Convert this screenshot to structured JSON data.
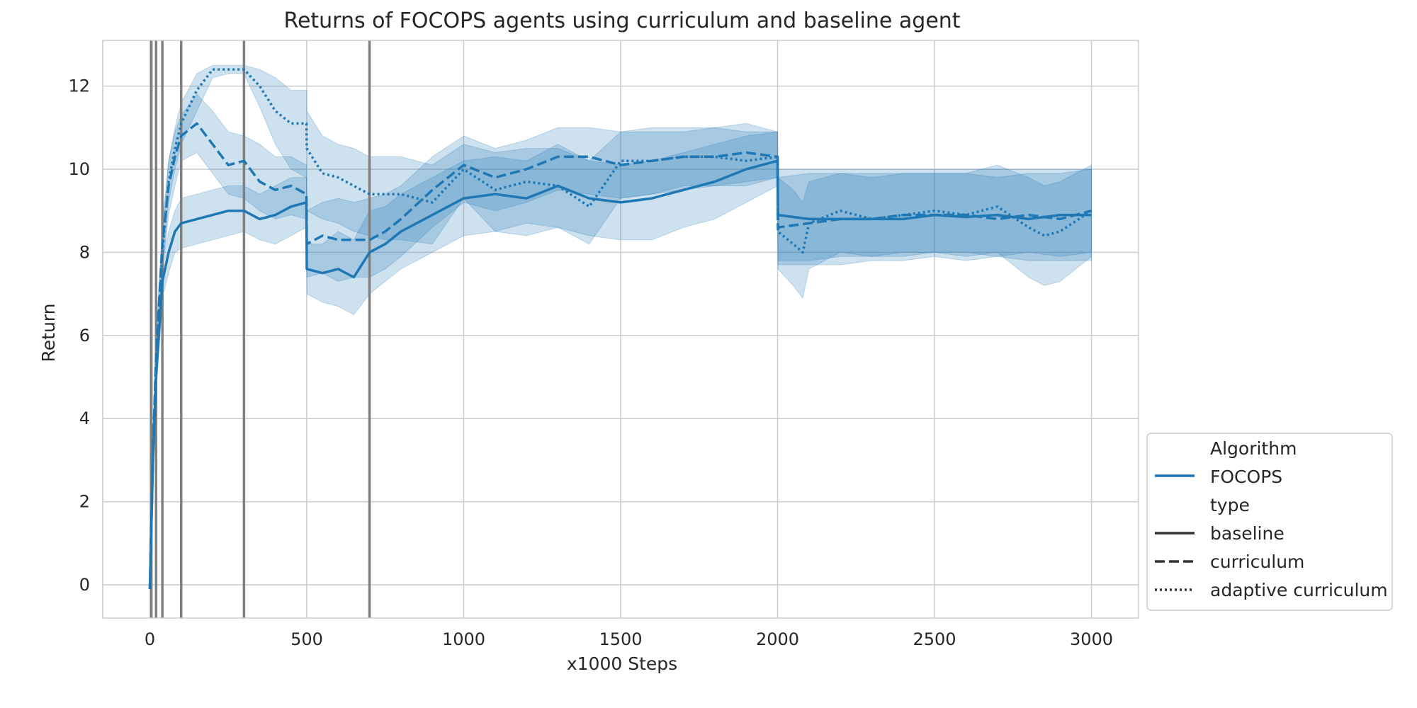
{
  "chart_data": {
    "type": "line",
    "title": "Returns of FOCOPS agents using curriculum and baseline agent",
    "xlabel": "x1000 Steps",
    "ylabel": "Return",
    "xlim": [
      -150,
      3150
    ],
    "ylim": [
      -0.8,
      13.1
    ],
    "xticks": [
      0,
      500,
      1000,
      1500,
      2000,
      2500,
      3000
    ],
    "yticks": [
      0,
      2,
      4,
      6,
      8,
      10,
      12
    ],
    "grid": true,
    "legend_position": "lower-right-outside",
    "color": "#1f77b4",
    "band_color": "#1f77b4",
    "vline_color": "#808080",
    "vlines": [
      5,
      20,
      40,
      100,
      300,
      700
    ],
    "legend": {
      "algorithm_title": "Algorithm",
      "algorithm_entries": [
        "FOCOPS"
      ],
      "type_title": "type",
      "type_entries": [
        "baseline",
        "curriculum",
        "adaptive curriculum"
      ]
    },
    "series": [
      {
        "name": "baseline",
        "style": "solid",
        "x": [
          0,
          10,
          20,
          40,
          60,
          80,
          100,
          150,
          200,
          250,
          300,
          350,
          400,
          450,
          499,
          500,
          550,
          600,
          650,
          700,
          750,
          800,
          900,
          1000,
          1100,
          1200,
          1300,
          1400,
          1500,
          1600,
          1700,
          1800,
          1900,
          2000,
          2001,
          2100,
          2200,
          2300,
          2400,
          2500,
          2600,
          2700,
          2800,
          2900,
          3000
        ],
        "y": [
          -0.1,
          3.0,
          5.0,
          7.3,
          8.0,
          8.5,
          8.7,
          8.8,
          8.9,
          9.0,
          9.0,
          8.8,
          8.9,
          9.1,
          9.2,
          7.6,
          7.5,
          7.6,
          7.4,
          8.0,
          8.2,
          8.5,
          8.9,
          9.3,
          9.4,
          9.3,
          9.6,
          9.3,
          9.2,
          9.3,
          9.5,
          9.7,
          10.0,
          10.2,
          8.9,
          8.8,
          8.8,
          8.8,
          8.8,
          8.9,
          8.85,
          8.9,
          8.8,
          8.9,
          8.9
        ],
        "lower": [
          -0.1,
          2.6,
          4.6,
          6.9,
          7.5,
          8.0,
          8.1,
          8.2,
          8.3,
          8.4,
          8.5,
          8.3,
          8.2,
          8.4,
          8.6,
          7.0,
          6.8,
          6.7,
          6.5,
          7.0,
          7.3,
          7.6,
          8.0,
          8.4,
          8.5,
          8.4,
          8.6,
          8.4,
          8.3,
          8.3,
          8.6,
          8.8,
          9.2,
          9.6,
          7.7,
          7.7,
          7.7,
          7.8,
          7.8,
          7.9,
          7.8,
          7.9,
          7.8,
          7.8,
          7.8
        ],
        "upper": [
          -0.1,
          3.3,
          5.4,
          7.8,
          8.5,
          9.0,
          9.3,
          9.4,
          9.5,
          9.6,
          9.6,
          9.4,
          9.6,
          9.8,
          9.8,
          8.2,
          8.2,
          8.5,
          8.3,
          9.0,
          9.1,
          9.4,
          9.8,
          10.2,
          10.3,
          10.2,
          10.6,
          10.2,
          10.1,
          10.2,
          10.4,
          10.6,
          10.8,
          10.9,
          10.0,
          10.0,
          10.0,
          10.0,
          10.0,
          10.0,
          10.0,
          10.0,
          10.0,
          10.0,
          10.0
        ]
      },
      {
        "name": "curriculum",
        "style": "dashed",
        "x": [
          0,
          10,
          20,
          40,
          60,
          80,
          100,
          150,
          200,
          250,
          300,
          350,
          400,
          450,
          499,
          500,
          550,
          600,
          650,
          700,
          750,
          800,
          900,
          1000,
          1100,
          1200,
          1300,
          1400,
          1500,
          1600,
          1700,
          1800,
          1900,
          2000,
          2001,
          2100,
          2200,
          2300,
          2400,
          2500,
          2600,
          2700,
          2800,
          2900,
          3000
        ],
        "y": [
          -0.1,
          3.2,
          5.5,
          8.2,
          9.6,
          10.3,
          10.8,
          11.1,
          10.6,
          10.1,
          10.2,
          9.7,
          9.5,
          9.6,
          9.4,
          8.2,
          8.4,
          8.3,
          8.3,
          8.3,
          8.5,
          8.8,
          9.5,
          10.1,
          9.8,
          10.0,
          10.3,
          10.3,
          10.1,
          10.2,
          10.3,
          10.3,
          10.4,
          10.3,
          8.6,
          8.7,
          8.8,
          8.8,
          8.9,
          8.9,
          8.9,
          8.8,
          8.9,
          8.8,
          9.0
        ],
        "lower": [
          -0.1,
          2.8,
          5.0,
          7.6,
          8.9,
          9.6,
          10.2,
          10.4,
          9.9,
          9.4,
          9.3,
          9.0,
          8.8,
          8.9,
          8.8,
          7.4,
          7.5,
          7.3,
          7.4,
          7.4,
          7.6,
          7.9,
          8.6,
          9.2,
          9.0,
          9.2,
          9.5,
          9.4,
          9.3,
          9.4,
          9.6,
          9.6,
          9.7,
          9.8,
          7.8,
          7.8,
          7.9,
          7.9,
          8.0,
          8.0,
          8.0,
          7.9,
          8.0,
          7.9,
          8.0
        ],
        "upper": [
          -0.1,
          3.6,
          6.0,
          8.7,
          10.2,
          10.9,
          11.3,
          11.8,
          11.4,
          10.9,
          10.8,
          10.6,
          10.3,
          10.3,
          10.1,
          9.0,
          9.2,
          9.3,
          9.2,
          9.3,
          9.4,
          9.6,
          10.3,
          10.8,
          10.5,
          10.7,
          11.0,
          11.0,
          10.9,
          11.0,
          11.0,
          11.0,
          11.1,
          10.9,
          9.8,
          9.9,
          9.9,
          9.9,
          9.9,
          9.9,
          9.9,
          9.8,
          9.9,
          9.9,
          10.0
        ]
      },
      {
        "name": "adaptive curriculum",
        "style": "dotted",
        "x": [
          0,
          10,
          20,
          40,
          60,
          80,
          100,
          150,
          200,
          250,
          300,
          350,
          400,
          450,
          499,
          500,
          550,
          600,
          650,
          700,
          750,
          800,
          900,
          1000,
          1100,
          1200,
          1300,
          1400,
          1500,
          1600,
          1700,
          1800,
          1900,
          2000,
          2001,
          2050,
          2080,
          2100,
          2200,
          2300,
          2400,
          2500,
          2600,
          2700,
          2800,
          2850,
          2900,
          3000
        ],
        "y": [
          -0.1,
          3.1,
          5.3,
          8.0,
          9.7,
          10.5,
          11.1,
          11.9,
          12.4,
          12.4,
          12.4,
          12.0,
          11.4,
          11.1,
          11.1,
          10.5,
          9.9,
          9.8,
          9.6,
          9.4,
          9.4,
          9.4,
          9.2,
          10.0,
          9.5,
          9.7,
          9.6,
          9.1,
          10.2,
          10.2,
          10.3,
          10.3,
          10.2,
          10.3,
          8.5,
          8.2,
          8.0,
          8.7,
          9.0,
          8.8,
          8.9,
          9.0,
          8.9,
          9.1,
          8.6,
          8.4,
          8.5,
          9.0
        ],
        "lower": [
          -0.1,
          2.7,
          4.8,
          7.5,
          9.2,
          10.0,
          10.6,
          11.4,
          12.2,
          12.3,
          12.3,
          11.5,
          10.6,
          10.0,
          9.8,
          9.0,
          8.8,
          8.7,
          8.5,
          8.4,
          8.3,
          8.3,
          8.2,
          9.3,
          8.5,
          8.7,
          8.6,
          8.2,
          9.3,
          9.4,
          9.5,
          9.6,
          9.6,
          9.8,
          7.6,
          7.2,
          6.9,
          7.6,
          8.0,
          7.9,
          7.9,
          8.0,
          7.9,
          8.0,
          7.4,
          7.2,
          7.3,
          7.9
        ],
        "upper": [
          -0.1,
          3.5,
          5.8,
          8.5,
          10.2,
          11.0,
          11.6,
          12.3,
          12.5,
          12.5,
          12.5,
          12.4,
          12.2,
          11.9,
          11.9,
          11.4,
          10.8,
          10.6,
          10.5,
          10.3,
          10.3,
          10.3,
          10.1,
          10.6,
          10.4,
          10.5,
          10.5,
          10.2,
          10.9,
          10.9,
          10.9,
          11.0,
          10.9,
          10.9,
          9.8,
          9.5,
          9.2,
          9.7,
          9.9,
          9.8,
          9.9,
          9.9,
          9.9,
          10.1,
          9.8,
          9.6,
          9.7,
          10.1
        ]
      }
    ]
  }
}
